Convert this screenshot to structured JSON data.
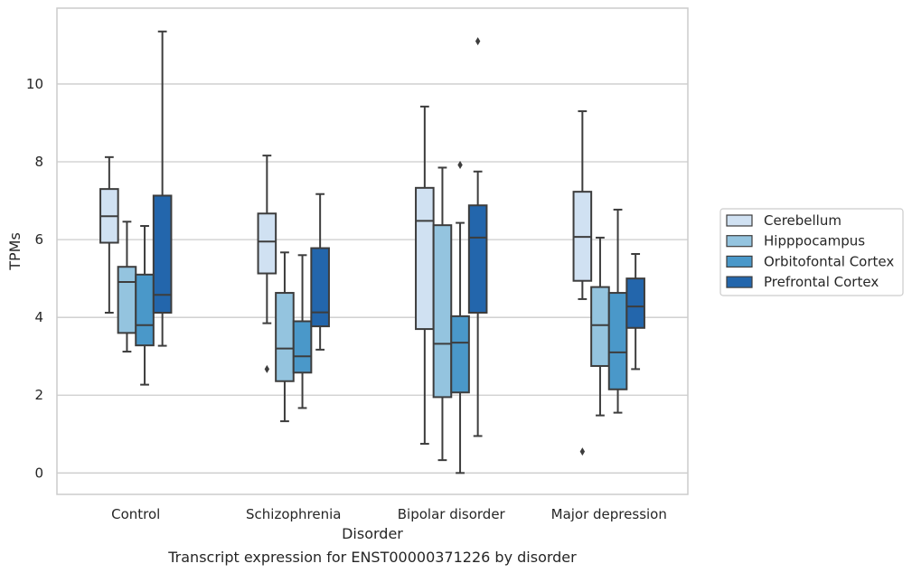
{
  "chart_data": {
    "type": "box",
    "caption": "Transcript expression for ENST00000371226 by disorder",
    "xlabel": "Disorder",
    "ylabel": "TPMs",
    "ylim": [
      -0.55,
      11.95
    ],
    "yticks": [
      0,
      2,
      4,
      6,
      8,
      10
    ],
    "grid": "horizontal",
    "legend_position": "right",
    "categories": [
      "Control",
      "Schizophrenia",
      "Bipolar disorder",
      "Major depression"
    ],
    "series": [
      {
        "name": "Cerebellum",
        "color": "#d0e1f2",
        "boxes": [
          {
            "whislo": 4.12,
            "q1": 5.92,
            "med": 6.6,
            "q3": 7.3,
            "whishi": 8.12,
            "fliers": []
          },
          {
            "whislo": 3.85,
            "q1": 5.13,
            "med": 5.95,
            "q3": 6.67,
            "whishi": 8.16,
            "fliers": [
              2.67
            ]
          },
          {
            "whislo": 0.75,
            "q1": 3.7,
            "med": 6.48,
            "q3": 7.33,
            "whishi": 9.42,
            "fliers": []
          },
          {
            "whislo": 4.47,
            "q1": 4.94,
            "med": 6.07,
            "q3": 7.23,
            "whishi": 9.3,
            "fliers": [
              0.55
            ]
          }
        ]
      },
      {
        "name": "Hipppocampus",
        "color": "#94c4df",
        "boxes": [
          {
            "whislo": 3.12,
            "q1": 3.6,
            "med": 4.91,
            "q3": 5.3,
            "whishi": 6.46,
            "fliers": []
          },
          {
            "whislo": 1.33,
            "q1": 2.36,
            "med": 3.2,
            "q3": 4.63,
            "whishi": 5.67,
            "fliers": []
          },
          {
            "whislo": 0.33,
            "q1": 1.95,
            "med": 3.32,
            "q3": 6.37,
            "whishi": 7.85,
            "fliers": []
          },
          {
            "whislo": 1.48,
            "q1": 2.75,
            "med": 3.8,
            "q3": 4.78,
            "whishi": 6.05,
            "fliers": []
          }
        ]
      },
      {
        "name": "Orbitofontal Cortex",
        "color": "#4a98c9",
        "boxes": [
          {
            "whislo": 2.27,
            "q1": 3.28,
            "med": 3.8,
            "q3": 5.1,
            "whishi": 6.35,
            "fliers": []
          },
          {
            "whislo": 1.67,
            "q1": 2.58,
            "med": 3.0,
            "q3": 3.9,
            "whishi": 5.6,
            "fliers": []
          },
          {
            "whislo": 0.0,
            "q1": 2.07,
            "med": 3.35,
            "q3": 4.03,
            "whishi": 6.43,
            "fliers": [
              7.92
            ]
          },
          {
            "whislo": 1.55,
            "q1": 2.15,
            "med": 3.1,
            "q3": 4.63,
            "whishi": 6.77,
            "fliers": []
          }
        ]
      },
      {
        "name": "Prefrontal Cortex",
        "color": "#2366ac",
        "boxes": [
          {
            "whislo": 3.27,
            "q1": 4.12,
            "med": 4.58,
            "q3": 7.13,
            "whishi": 11.35,
            "fliers": []
          },
          {
            "whislo": 3.17,
            "q1": 3.77,
            "med": 4.13,
            "q3": 5.78,
            "whishi": 7.17,
            "fliers": []
          },
          {
            "whislo": 0.95,
            "q1": 4.12,
            "med": 6.05,
            "q3": 6.88,
            "whishi": 7.75,
            "fliers": [
              11.1
            ]
          },
          {
            "whislo": 2.67,
            "q1": 3.73,
            "med": 4.28,
            "q3": 5.0,
            "whishi": 5.63,
            "fliers": []
          }
        ]
      }
    ]
  }
}
